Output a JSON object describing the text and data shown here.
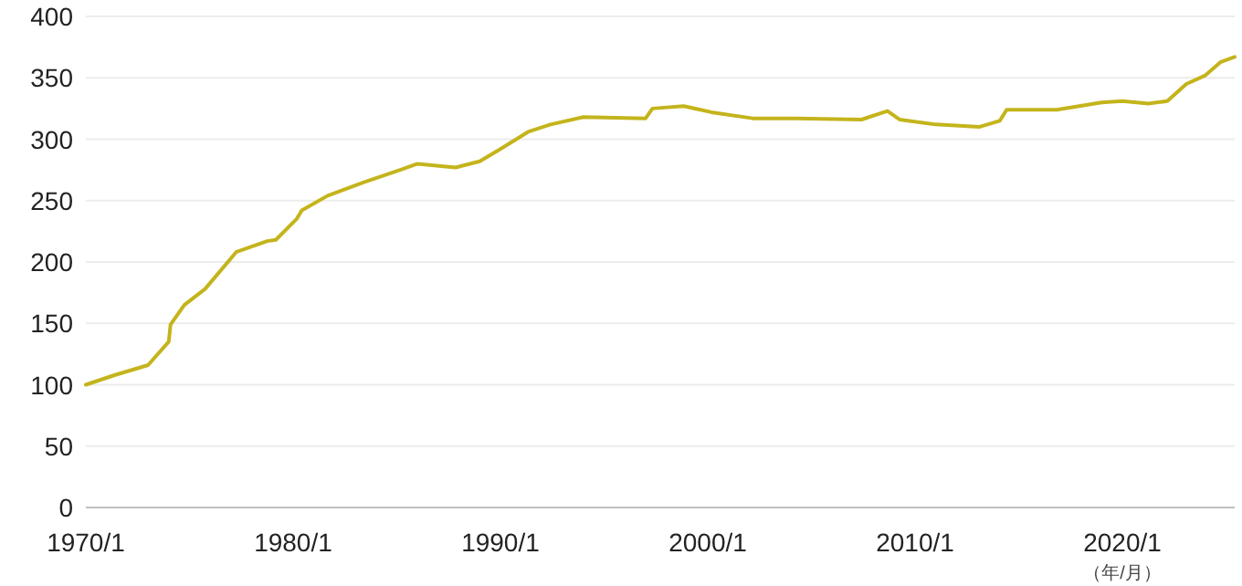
{
  "chart_data": {
    "type": "line",
    "color": "#c4b41c",
    "grid": "y",
    "xlim": [
      "1970-01",
      "2025-06"
    ],
    "xticks": [
      {
        "value": "1970-01",
        "label": "1970/1"
      },
      {
        "value": "1980-01",
        "label": "1980/1"
      },
      {
        "value": "1990-01",
        "label": "1990/1"
      },
      {
        "value": "2000-01",
        "label": "2000/1"
      },
      {
        "value": "2010-01",
        "label": "2010/1"
      },
      {
        "value": "2020-01",
        "label": "2020/1"
      }
    ],
    "ylim": [
      0,
      400
    ],
    "yticks": [
      0,
      50,
      100,
      150,
      200,
      250,
      300,
      350,
      400
    ],
    "annotations": [
      "（年/月）"
    ],
    "x": [
      "1970-01",
      "1971-06",
      "1972-06",
      "1973-01",
      "1974-01",
      "1974-02",
      "1974-10",
      "1975-10",
      "1977-04",
      "1978-10",
      "1979-03",
      "1980-03",
      "1980-06",
      "1981-09",
      "1983-06",
      "1985-03",
      "1986-01",
      "1987-11",
      "1989-01",
      "1990-01",
      "1991-05",
      "1992-06",
      "1994-01",
      "1997-01",
      "1997-05",
      "1998-11",
      "2000-03",
      "2002-03",
      "2004-04",
      "2007-06",
      "2008-09",
      "2009-04",
      "2011-01",
      "2013-02",
      "2014-02",
      "2014-06",
      "2016-11",
      "2019-01",
      "2020-01",
      "2021-04",
      "2022-03",
      "2023-02",
      "2024-01",
      "2024-10",
      "2025-06"
    ],
    "values": [
      100,
      108,
      113,
      116,
      135,
      149,
      165,
      178,
      208,
      217,
      218,
      235,
      242,
      254,
      265,
      275,
      280,
      277,
      282,
      292,
      306,
      312,
      318,
      317,
      325,
      327,
      322,
      317,
      317,
      316,
      323,
      316,
      312,
      310,
      315,
      324,
      324,
      330,
      331,
      329,
      331,
      345,
      352,
      363,
      367
    ]
  }
}
